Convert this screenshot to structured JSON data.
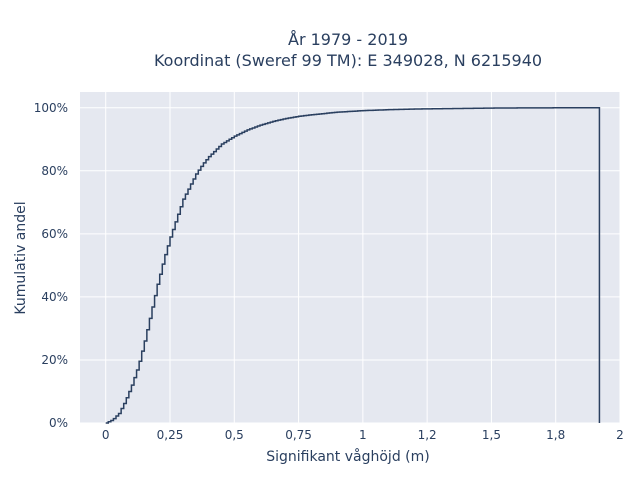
{
  "colors": {
    "plot_background": "#e5e8f0",
    "grid": "#ffffff",
    "line": "#2a3f5f",
    "text": "#2a3f5f"
  },
  "chart_data": {
    "type": "line",
    "step": true,
    "title_line1": "År 1979 - 2019",
    "title_line2": "Koordinat (Sweref 99 TM): E 349028, N 6215940",
    "xlabel": "Signifikant våghöjd (m)",
    "ylabel": "Kumulativ andel",
    "xlim": [
      -0.1,
      2
    ],
    "ylim": [
      0,
      1.05
    ],
    "grid": true,
    "xticks": [
      {
        "value": 0,
        "label": "0"
      },
      {
        "value": 0.25,
        "label": "0,25"
      },
      {
        "value": 0.5,
        "label": "0,5"
      },
      {
        "value": 0.75,
        "label": "0,75"
      },
      {
        "value": 1,
        "label": "1"
      },
      {
        "value": 1.25,
        "label": "1,2"
      },
      {
        "value": 1.5,
        "label": "1,5"
      },
      {
        "value": 1.75,
        "label": "1,8"
      },
      {
        "value": 2,
        "label": "2"
      }
    ],
    "yticks": [
      {
        "value": 0,
        "label": "0%"
      },
      {
        "value": 0.2,
        "label": "20%"
      },
      {
        "value": 0.4,
        "label": "40%"
      },
      {
        "value": 0.6,
        "label": "60%"
      },
      {
        "value": 0.8,
        "label": "80%"
      },
      {
        "value": 1,
        "label": "100%"
      }
    ],
    "x": [
      0,
      0.025,
      0.05,
      0.075,
      0.1,
      0.125,
      0.15,
      0.175,
      0.2,
      0.225,
      0.25,
      0.275,
      0.3,
      0.325,
      0.35,
      0.375,
      0.4,
      0.425,
      0.45,
      0.5,
      0.55,
      0.6,
      0.65,
      0.7,
      0.75,
      0.8,
      0.9,
      1.0,
      1.1,
      1.2,
      1.3,
      1.4,
      1.5,
      1.6,
      1.7,
      1.8,
      1.9,
      1.92
    ],
    "y": [
      0,
      0.01,
      0.03,
      0.07,
      0.12,
      0.18,
      0.26,
      0.35,
      0.44,
      0.52,
      0.59,
      0.65,
      0.71,
      0.75,
      0.79,
      0.82,
      0.845,
      0.865,
      0.885,
      0.91,
      0.93,
      0.945,
      0.957,
      0.966,
      0.973,
      0.978,
      0.986,
      0.991,
      0.994,
      0.996,
      0.997,
      0.998,
      0.999,
      0.9995,
      0.9998,
      0.9999,
      1.0,
      1.0
    ],
    "drop_to_zero_at": 1.92
  }
}
